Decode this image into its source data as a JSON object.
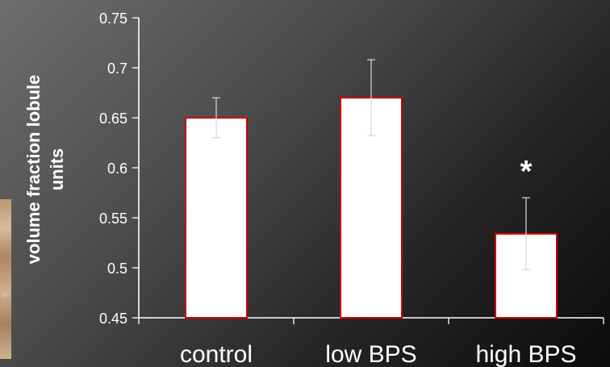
{
  "chart_data": {
    "type": "bar",
    "title": "",
    "xlabel": "",
    "ylabel": "volume fraction lobule units",
    "categories": [
      "control",
      "low BPS",
      "high BPS"
    ],
    "series": [
      {
        "values": [
          0.65,
          0.67,
          0.534
        ],
        "error_upper": [
          0.02,
          0.038,
          0.036
        ],
        "error_lower": [
          0.02,
          0.038,
          0.036
        ]
      }
    ],
    "ylim": [
      0.45,
      0.75
    ],
    "y_ticks": [
      "0.45",
      "0.5",
      "0.55",
      "0.6",
      "0.65",
      "0.7",
      "0.75"
    ],
    "annotations": [
      {
        "text": "*",
        "category": "high BPS"
      }
    ],
    "grid": false,
    "legend": "none",
    "colors": {
      "background_light": "#6e6e6e",
      "background_dark": "#0b0b0b",
      "bar_fill": "#ffffff",
      "bar_stroke": "#d40000",
      "axis": "#ffffff",
      "text": "#ffffff"
    }
  }
}
